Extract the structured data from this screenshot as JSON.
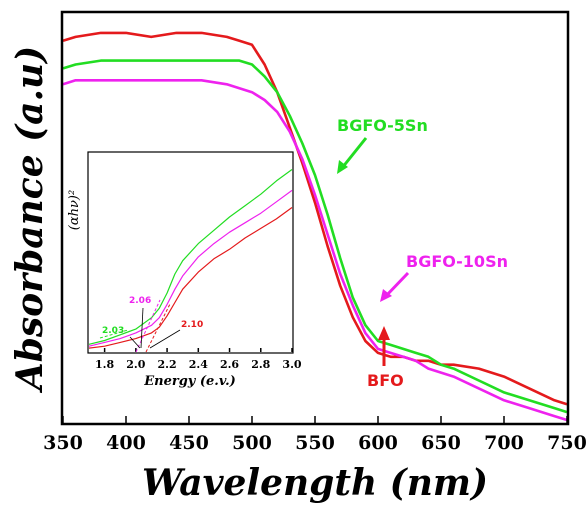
{
  "chart_data": [
    {
      "type": "line",
      "title": "",
      "xlabel": "Wavelength (nm)",
      "ylabel": "Absorbance (a.u)",
      "xlim": [
        350,
        750
      ],
      "ylim": [
        0,
        1
      ],
      "xticks": [
        350,
        400,
        450,
        500,
        550,
        600,
        650,
        700,
        750
      ],
      "yticks_shown": false,
      "grid": false,
      "series": [
        {
          "name": "BFO",
          "color": "#e41a1c",
          "x": [
            350,
            360,
            380,
            400,
            420,
            440,
            460,
            480,
            490,
            500,
            510,
            520,
            530,
            540,
            550,
            560,
            570,
            580,
            590,
            600,
            610,
            620,
            630,
            640,
            650,
            660,
            680,
            700,
            720,
            740,
            750
          ],
          "y": [
            0.96,
            0.97,
            0.98,
            0.98,
            0.97,
            0.98,
            0.98,
            0.97,
            0.96,
            0.95,
            0.9,
            0.83,
            0.74,
            0.65,
            0.55,
            0.44,
            0.34,
            0.26,
            0.2,
            0.17,
            0.16,
            0.16,
            0.15,
            0.15,
            0.14,
            0.14,
            0.13,
            0.11,
            0.08,
            0.05,
            0.04
          ]
        },
        {
          "name": "BGFO-5Sn",
          "color": "#22dd22",
          "x": [
            350,
            360,
            380,
            400,
            420,
            440,
            460,
            480,
            490,
            500,
            510,
            520,
            530,
            540,
            550,
            560,
            570,
            580,
            590,
            600,
            610,
            620,
            630,
            640,
            650,
            660,
            680,
            700,
            720,
            740,
            750
          ],
          "y": [
            0.89,
            0.9,
            0.91,
            0.91,
            0.91,
            0.91,
            0.91,
            0.91,
            0.91,
            0.9,
            0.87,
            0.83,
            0.77,
            0.7,
            0.62,
            0.52,
            0.41,
            0.31,
            0.24,
            0.2,
            0.19,
            0.18,
            0.17,
            0.16,
            0.14,
            0.13,
            0.1,
            0.07,
            0.05,
            0.03,
            0.02
          ]
        },
        {
          "name": "BGFO-10Sn",
          "color": "#ee22ee",
          "x": [
            350,
            360,
            380,
            400,
            420,
            440,
            460,
            480,
            490,
            500,
            510,
            520,
            530,
            540,
            550,
            560,
            570,
            580,
            590,
            600,
            610,
            620,
            630,
            640,
            650,
            660,
            680,
            700,
            720,
            740,
            750
          ],
          "y": [
            0.85,
            0.86,
            0.86,
            0.86,
            0.86,
            0.86,
            0.86,
            0.85,
            0.84,
            0.83,
            0.81,
            0.78,
            0.73,
            0.66,
            0.57,
            0.47,
            0.37,
            0.29,
            0.22,
            0.18,
            0.17,
            0.16,
            0.15,
            0.13,
            0.12,
            0.11,
            0.08,
            0.05,
            0.03,
            0.01,
            0.0
          ]
        }
      ],
      "annotations": [
        {
          "text": "BGFO-5Sn",
          "color": "#22dd22"
        },
        {
          "text": "BGFO-10Sn",
          "color": "#ee22ee"
        },
        {
          "text": "BFO",
          "color": "#e41a1c"
        }
      ]
    },
    {
      "type": "line",
      "title": "",
      "xlabel": "Energy (e.v.)",
      "ylabel": "(αhν)²",
      "xlim": [
        1.7,
        3.0
      ],
      "ylim": [
        0,
        1
      ],
      "xticks": [
        1.8,
        2.0,
        2.2,
        2.4,
        2.6,
        2.8,
        3.0
      ],
      "yticks_shown": false,
      "series": [
        {
          "name": "BGFO-5Sn",
          "color": "#22dd22",
          "x": [
            1.7,
            1.8,
            1.9,
            2.0,
            2.1,
            2.15,
            2.2,
            2.25,
            2.3,
            2.4,
            2.5,
            2.6,
            2.7,
            2.8,
            2.9,
            3.0
          ],
          "y": [
            0.03,
            0.05,
            0.08,
            0.11,
            0.17,
            0.22,
            0.3,
            0.4,
            0.47,
            0.56,
            0.63,
            0.7,
            0.76,
            0.82,
            0.89,
            0.95
          ]
        },
        {
          "name": "BGFO-10Sn",
          "color": "#ee22ee",
          "x": [
            1.7,
            1.8,
            1.9,
            2.0,
            2.1,
            2.15,
            2.2,
            2.25,
            2.3,
            2.4,
            2.5,
            2.6,
            2.7,
            2.8,
            2.9,
            3.0
          ],
          "y": [
            0.02,
            0.04,
            0.06,
            0.09,
            0.13,
            0.17,
            0.24,
            0.32,
            0.39,
            0.49,
            0.56,
            0.62,
            0.67,
            0.72,
            0.78,
            0.84
          ]
        },
        {
          "name": "BFO",
          "color": "#e41a1c",
          "x": [
            1.7,
            1.8,
            1.9,
            2.0,
            2.1,
            2.15,
            2.2,
            2.25,
            2.3,
            2.4,
            2.5,
            2.6,
            2.7,
            2.8,
            2.9,
            3.0
          ],
          "y": [
            0.01,
            0.02,
            0.04,
            0.06,
            0.09,
            0.12,
            0.18,
            0.25,
            0.32,
            0.41,
            0.48,
            0.53,
            0.59,
            0.64,
            0.69,
            0.75
          ]
        }
      ],
      "tangent_intercepts": [
        {
          "text": "2.03",
          "value": 2.03,
          "color": "#22dd22"
        },
        {
          "text": "2.06",
          "value": 2.06,
          "color": "#ee22ee"
        },
        {
          "text": "2.10",
          "value": 2.1,
          "color": "#e41a1c"
        }
      ]
    }
  ]
}
